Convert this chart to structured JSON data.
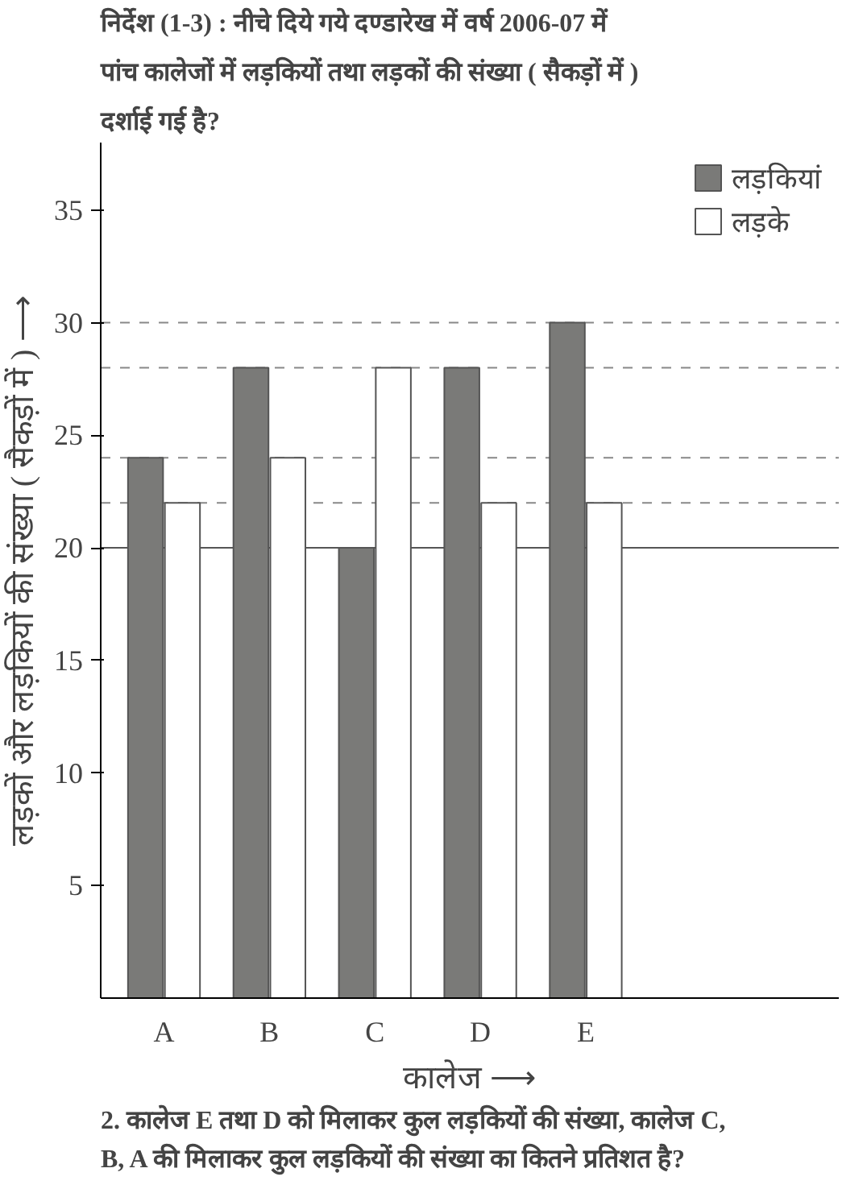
{
  "chart_data": {
    "type": "bar",
    "title": "निर्देश (1-3) : नीचे दिये गये दण्डारेख में वर्ष 2006-07 में पांच कालेजों में लड़कियों तथा लड़कों की संख्या ( सैकड़ों में ) दर्शाई गई है?",
    "xlabel": "कालेज ⟶",
    "ylabel": "लड़कों और लड़कियों की संख्या ( सैकड़ों में ) ⟶",
    "categories": [
      "A",
      "B",
      "C",
      "D",
      "E"
    ],
    "series": [
      {
        "name": "लड़कियां",
        "color": "#7a7a78",
        "values": [
          24,
          28,
          20,
          28,
          30
        ]
      },
      {
        "name": "लड़के",
        "color": "#ffffff",
        "values": [
          22,
          24,
          28,
          22,
          22
        ]
      }
    ],
    "ylim": [
      0,
      38
    ],
    "yticks": [
      5,
      10,
      15,
      20,
      25,
      30,
      35
    ],
    "ref_lines": [
      {
        "axis": "y",
        "value": 30,
        "label": null,
        "color": "#888888",
        "line_style": "dashed"
      },
      {
        "axis": "y",
        "value": 28,
        "label": null,
        "color": "#888888",
        "line_style": "dashed"
      },
      {
        "axis": "y",
        "value": 24,
        "label": null,
        "color": "#888888",
        "line_style": "dashed"
      },
      {
        "axis": "y",
        "value": 22,
        "label": null,
        "color": "#888888",
        "line_style": "dashed"
      },
      {
        "axis": "y",
        "value": 20,
        "label": null,
        "color": "#555555",
        "line_style": "solid"
      }
    ],
    "grid": false,
    "legend": "top right",
    "annotations": [
      "2.   कालेज E तथा D को मिलाकर कुल लड़कियों की संख्या, कालेज C, B, A की मिलाकर कुल लड़कियों की संख्या का कितने प्रतिशत है?"
    ]
  }
}
